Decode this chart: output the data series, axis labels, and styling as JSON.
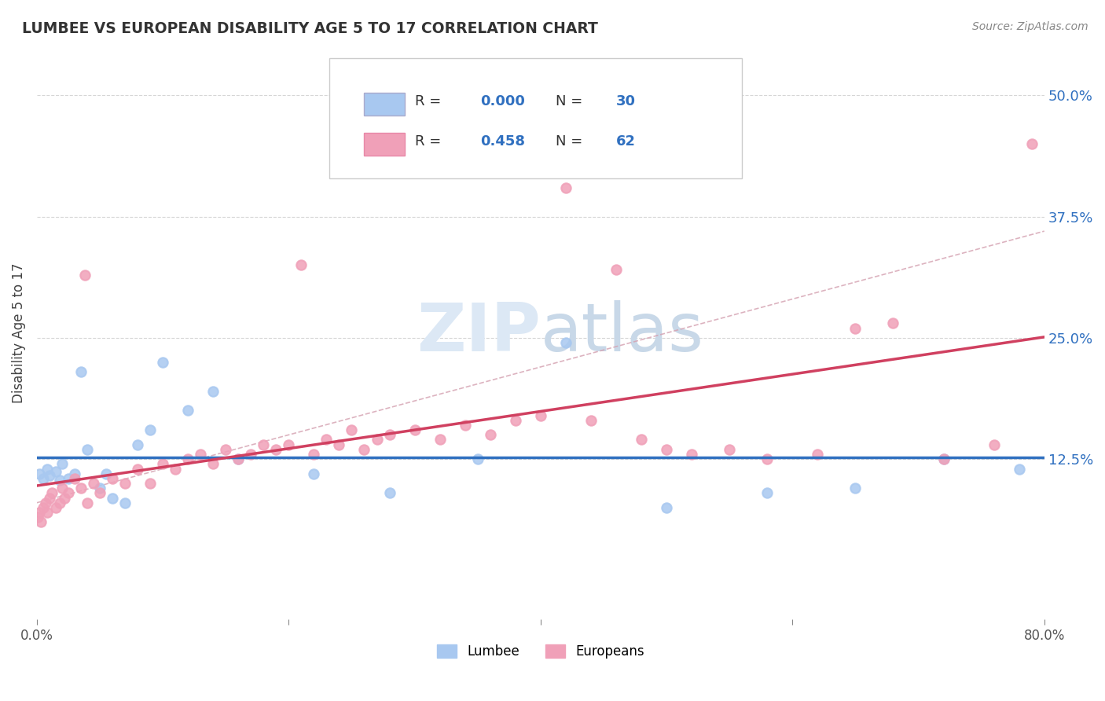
{
  "title": "LUMBEE VS EUROPEAN DISABILITY AGE 5 TO 17 CORRELATION CHART",
  "source_text": "Source: ZipAtlas.com",
  "ylabel": "Disability Age 5 to 17",
  "xlim": [
    0.0,
    80.0
  ],
  "ylim": [
    -4.0,
    55.0
  ],
  "ytick_positions": [
    12.5,
    25.0,
    37.5,
    50.0
  ],
  "ytick_labels": [
    "12.5%",
    "25.0%",
    "37.5%",
    "50.0%"
  ],
  "lumbee_R": "0.000",
  "lumbee_N": "30",
  "euro_R": "0.458",
  "euro_N": "62",
  "lumbee_dot_color": "#a8c8f0",
  "euro_dot_color": "#f0a0b8",
  "lumbee_line_color": "#3070c0",
  "euro_line_color": "#d04060",
  "dash_line_color": "#e0b0c0",
  "legend_label_1": "Lumbee",
  "legend_label_2": "Europeans",
  "stat_color": "#3070c0",
  "background_color": "#ffffff",
  "watermark_color": "#dce8f5",
  "lumbee_x": [
    0.2,
    0.5,
    0.8,
    1.0,
    1.5,
    1.8,
    2.0,
    2.5,
    3.0,
    4.0,
    5.0,
    6.0,
    7.0,
    8.0,
    9.0,
    10.0,
    12.0,
    14.0,
    16.0,
    22.0,
    28.0,
    35.0,
    42.0,
    50.0,
    58.0,
    65.0,
    72.0,
    78.0,
    5.5,
    3.5
  ],
  "lumbee_y": [
    11.0,
    10.5,
    11.5,
    10.8,
    11.2,
    10.3,
    12.0,
    10.5,
    11.0,
    13.5,
    9.5,
    8.5,
    8.0,
    14.0,
    15.5,
    22.5,
    17.5,
    19.5,
    12.5,
    11.0,
    9.0,
    12.5,
    24.5,
    7.5,
    9.0,
    9.5,
    12.5,
    11.5,
    11.0,
    21.5
  ],
  "euro_x": [
    0.1,
    0.2,
    0.3,
    0.5,
    0.7,
    0.8,
    1.0,
    1.2,
    1.5,
    1.8,
    2.0,
    2.2,
    2.5,
    3.0,
    3.5,
    4.0,
    4.5,
    5.0,
    6.0,
    7.0,
    8.0,
    9.0,
    10.0,
    11.0,
    12.0,
    13.0,
    14.0,
    15.0,
    16.0,
    17.0,
    18.0,
    19.0,
    20.0,
    21.0,
    22.0,
    23.0,
    24.0,
    25.0,
    26.0,
    27.0,
    28.0,
    30.0,
    32.0,
    34.0,
    36.0,
    38.0,
    40.0,
    42.0,
    44.0,
    46.0,
    48.0,
    50.0,
    52.0,
    55.0,
    58.0,
    62.0,
    65.0,
    68.0,
    72.0,
    76.0,
    79.0,
    3.8
  ],
  "euro_y": [
    6.5,
    7.0,
    6.0,
    7.5,
    8.0,
    7.0,
    8.5,
    9.0,
    7.5,
    8.0,
    9.5,
    8.5,
    9.0,
    10.5,
    9.5,
    8.0,
    10.0,
    9.0,
    10.5,
    10.0,
    11.5,
    10.0,
    12.0,
    11.5,
    12.5,
    13.0,
    12.0,
    13.5,
    12.5,
    13.0,
    14.0,
    13.5,
    14.0,
    32.5,
    13.0,
    14.5,
    14.0,
    15.5,
    13.5,
    14.5,
    15.0,
    15.5,
    14.5,
    16.0,
    15.0,
    16.5,
    17.0,
    40.5,
    16.5,
    32.0,
    14.5,
    13.5,
    13.0,
    13.5,
    12.5,
    13.0,
    26.0,
    26.5,
    12.5,
    14.0,
    45.0,
    31.5
  ]
}
